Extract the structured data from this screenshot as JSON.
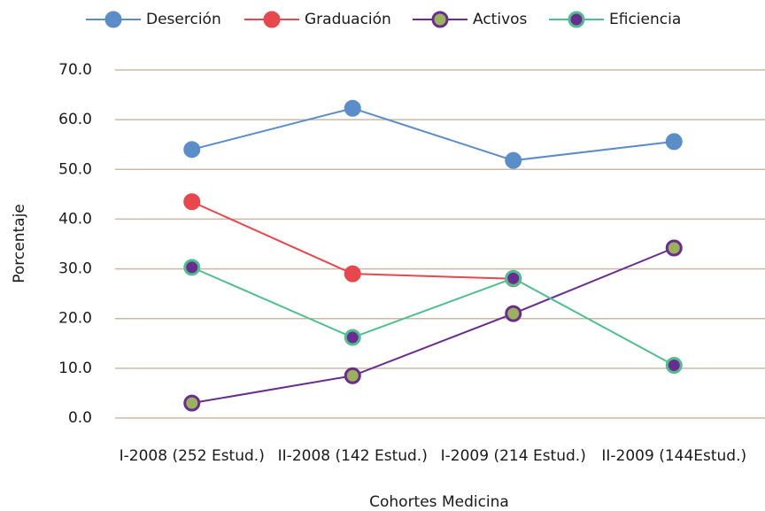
{
  "chart_data": {
    "type": "line",
    "x_label": "Cohortes Medicina",
    "y_label": "Porcentaje",
    "categories": [
      "I-2008 (252 Estud.)",
      "II-2008 (142 Estud.)",
      "I-2009 (214 Estud.)",
      "II-2009 (144Estud.)"
    ],
    "series": [
      {
        "name": "Deserción",
        "color": "#5b8dc8",
        "marker_fill": "#5b8dc8",
        "values": [
          54.0,
          62.3,
          51.8,
          55.6
        ]
      },
      {
        "name": "Graduación",
        "color": "#e8484d",
        "marker_fill": "#e8484d",
        "values": [
          43.5,
          29.0,
          28.0,
          null
        ]
      },
      {
        "name": "Activos",
        "color": "#6a2c91",
        "marker_fill": "#9bb25a",
        "values": [
          3.0,
          8.5,
          21.0,
          34.2
        ]
      },
      {
        "name": "Eficiencia",
        "color": "#4fc08d",
        "marker_fill": "#6a2c91",
        "values": [
          30.3,
          16.2,
          28.1,
          10.6
        ]
      }
    ],
    "ylim": [
      0,
      70
    ],
    "yticks": [
      {
        "value": 0,
        "label": "0.0"
      },
      {
        "value": 10,
        "label": "10.0"
      },
      {
        "value": 20,
        "label": "20.0"
      },
      {
        "value": 30,
        "label": "30.0"
      },
      {
        "value": 40,
        "label": "40.0"
      },
      {
        "value": 50,
        "label": "50.0"
      },
      {
        "value": 60,
        "label": "60.0"
      },
      {
        "value": 70,
        "label": "70.0"
      }
    ],
    "grid": true,
    "grid_color": "#cbb9a6",
    "legend": "top"
  }
}
